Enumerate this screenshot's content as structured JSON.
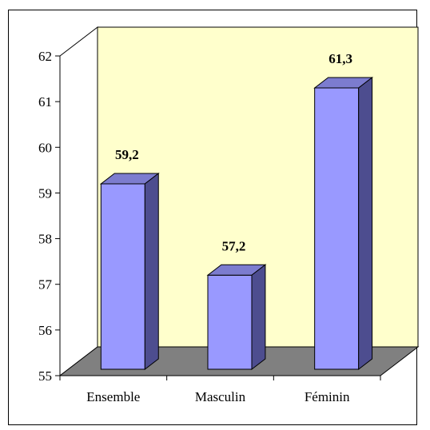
{
  "chart_data": {
    "type": "bar",
    "style": "3d-column",
    "categories": [
      "Ensemble",
      "Masculin",
      "Féminin"
    ],
    "values": [
      59.2,
      57.2,
      61.3
    ],
    "value_labels": [
      "59,2",
      "57,2",
      "61,3"
    ],
    "ylim": [
      55,
      62
    ],
    "yticks": [
      55,
      56,
      57,
      58,
      59,
      60,
      61,
      62
    ],
    "ytick_labels": [
      "55",
      "56",
      "57",
      "58",
      "59",
      "60",
      "61",
      "62"
    ],
    "title": "",
    "xlabel": "",
    "ylabel": "",
    "grid": false,
    "legend": "none",
    "colors": {
      "bar_front": "#9999ff",
      "bar_top": "#7c7ccf",
      "bar_side": "#4d4d8f",
      "back_wall": "#ffffcc",
      "floor": "#808080"
    }
  }
}
